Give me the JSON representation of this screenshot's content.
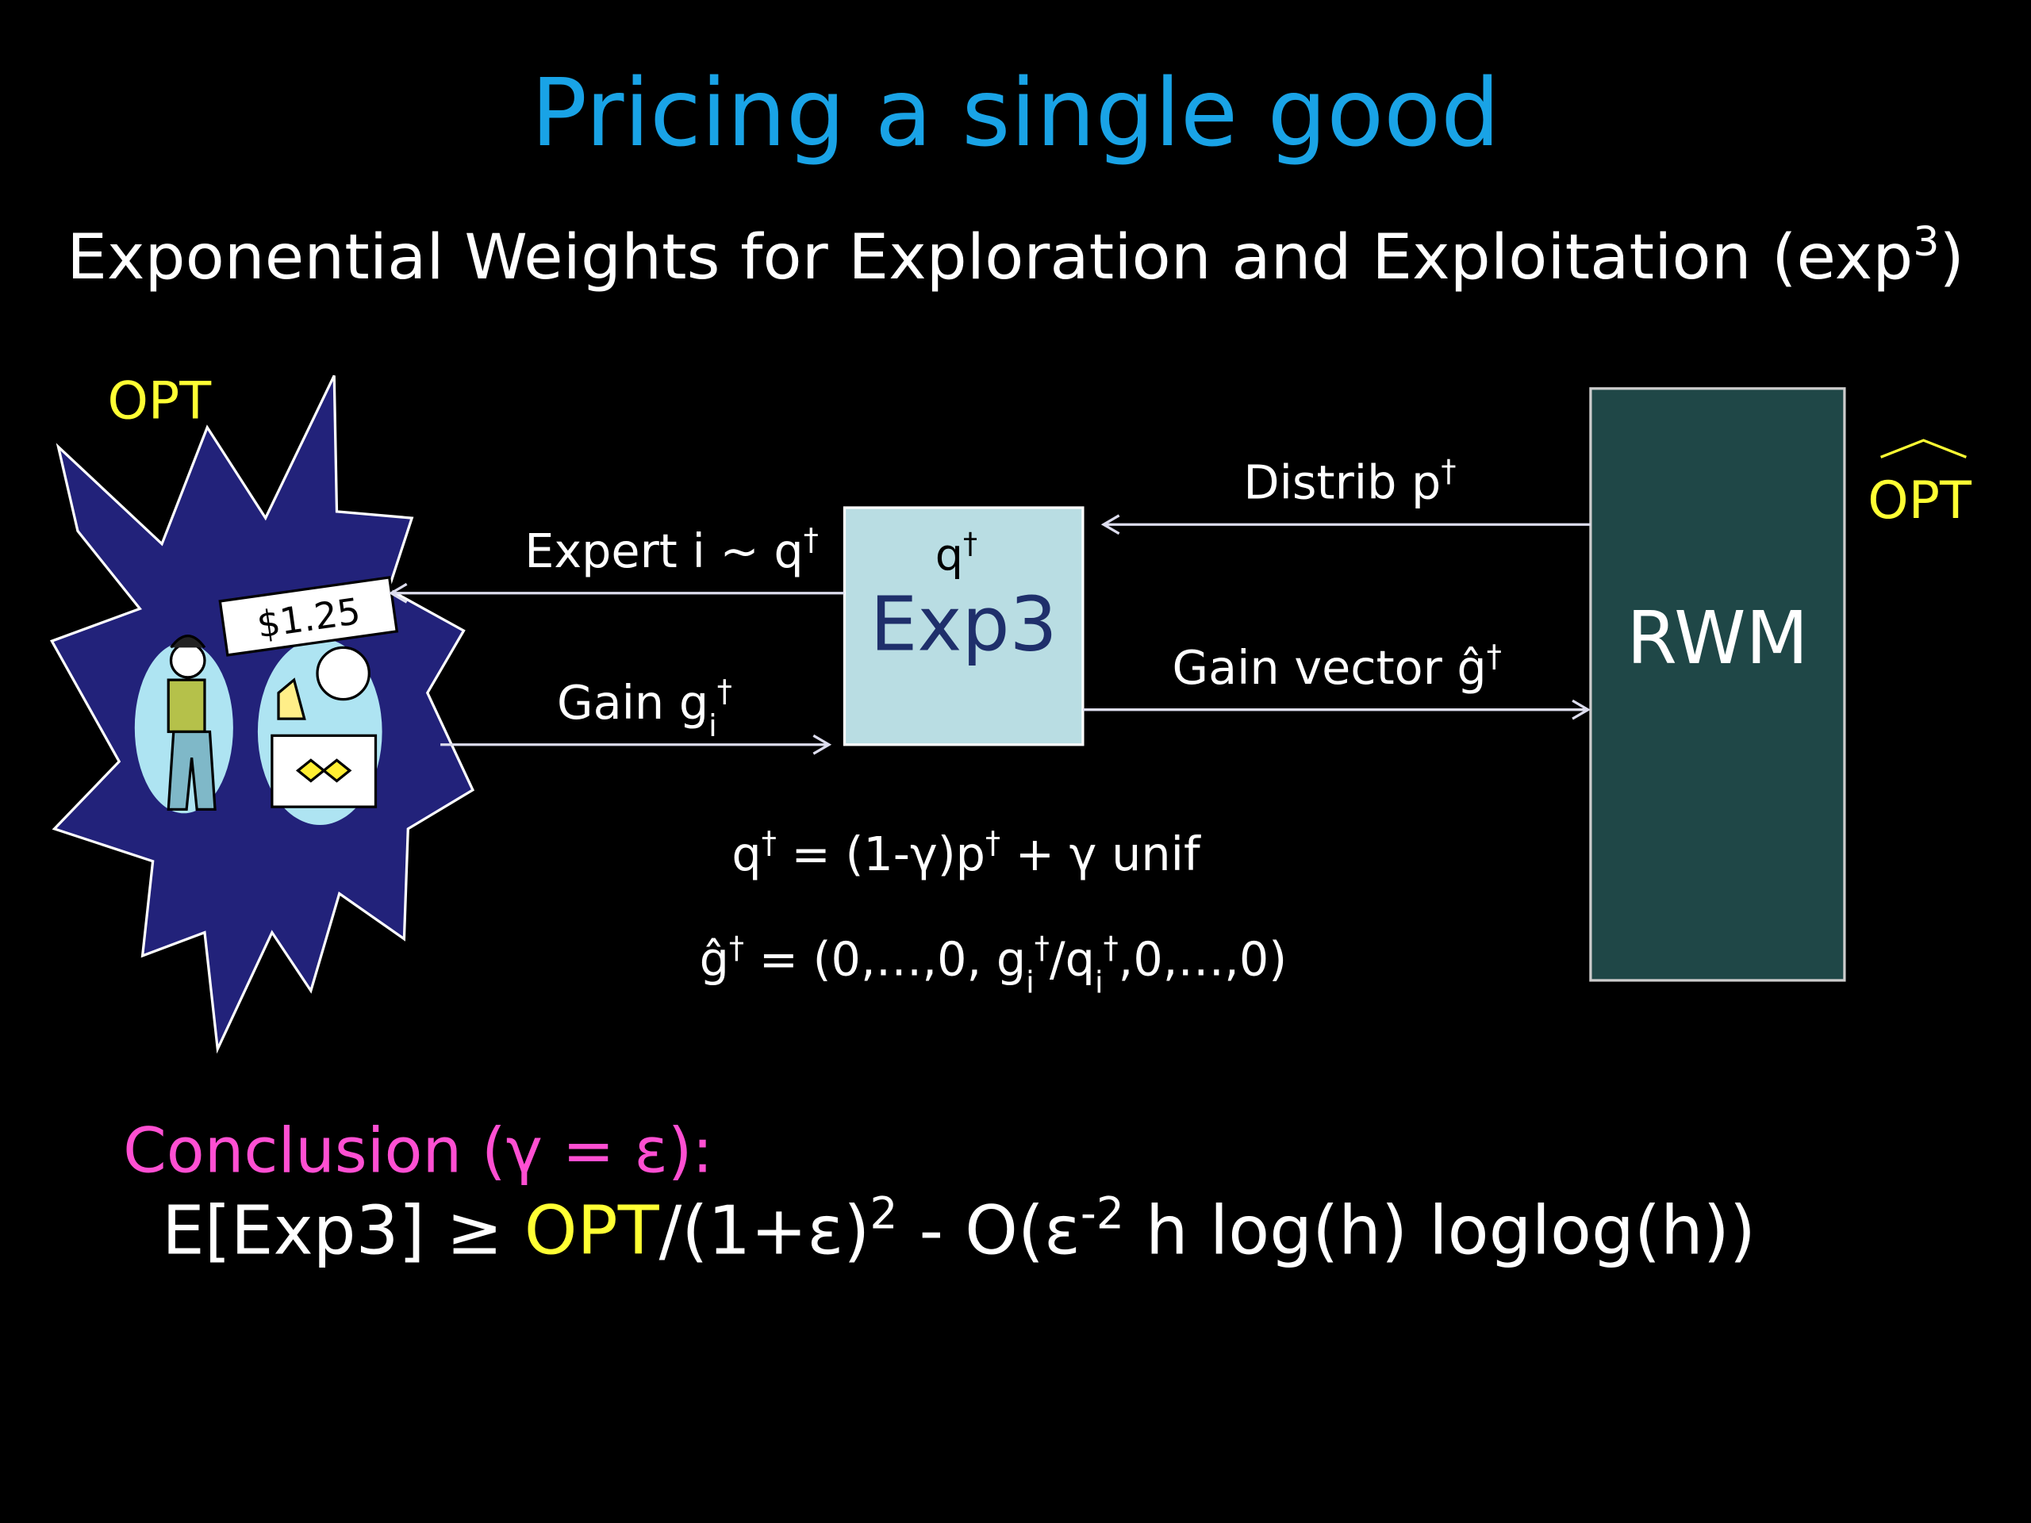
{
  "title": "Pricing a single good",
  "subtitle": [
    "Exponential Weights for Exploration and Exploitation (exp",
    "3",
    ")"
  ],
  "starburst": {
    "label": "OPT",
    "price": "$1.25"
  },
  "exp3_box": {
    "top": [
      "q",
      "†"
    ],
    "label": "Exp3"
  },
  "rwm_box": {
    "label": "RWM",
    "side_label": "OPT"
  },
  "arrows": {
    "distrib": [
      "Distrib p",
      "†"
    ],
    "expert": [
      "Expert i ~ q",
      "†"
    ],
    "gain": [
      "Gain g",
      "i",
      "†"
    ],
    "gain_vector": [
      "Gain vector ĝ",
      "†"
    ]
  },
  "formulas": [
    [
      "q",
      "†",
      " = (1-γ)p",
      "†",
      " + γ unif"
    ],
    [
      "ĝ",
      "†",
      " = (0,…,0, g",
      "i",
      "†",
      "/q",
      "i",
      "†",
      ",0,…,0)"
    ]
  ],
  "conclusion": {
    "heading": [
      "Conclusion",
      " (γ = ε):"
    ],
    "statement": [
      "E[Exp3] ≥ ",
      "OPT",
      "/(1+ε)",
      "2",
      " - O(ε",
      "-2",
      " h log(h) loglog(h))"
    ]
  }
}
